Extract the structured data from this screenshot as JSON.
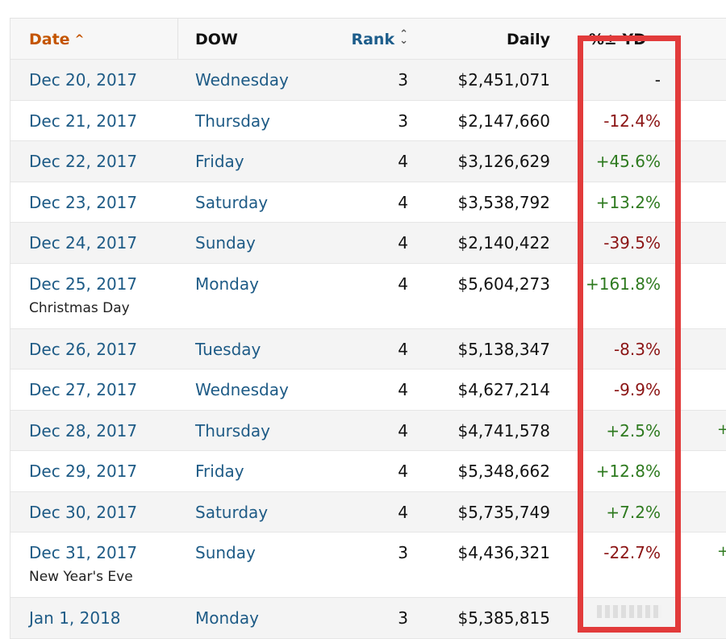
{
  "columns": {
    "date": "Date",
    "dow": "DOW",
    "rank": "Rank",
    "daily": "Daily",
    "pct": "%± YD"
  },
  "rows": [
    {
      "date": "Dec 20, 2017",
      "dow": "Wednesday",
      "rank": "3",
      "daily": "$2,451,071",
      "pct": "-",
      "pct_type": "neutral"
    },
    {
      "date": "Dec 21, 2017",
      "dow": "Thursday",
      "rank": "3",
      "daily": "$2,147,660",
      "pct": "-12.4%",
      "pct_type": "neg"
    },
    {
      "date": "Dec 22, 2017",
      "dow": "Friday",
      "rank": "4",
      "daily": "$3,126,629",
      "pct": "+45.6%",
      "pct_type": "pos"
    },
    {
      "date": "Dec 23, 2017",
      "dow": "Saturday",
      "rank": "4",
      "daily": "$3,538,792",
      "pct": "+13.2%",
      "pct_type": "pos"
    },
    {
      "date": "Dec 24, 2017",
      "dow": "Sunday",
      "rank": "4",
      "daily": "$2,140,422",
      "pct": "-39.5%",
      "pct_type": "neg"
    },
    {
      "date": "Dec 25, 2017",
      "note": "Christmas Day",
      "dow": "Monday",
      "rank": "4",
      "daily": "$5,604,273",
      "pct": "+161.8%",
      "pct_type": "pos"
    },
    {
      "date": "Dec 26, 2017",
      "dow": "Tuesday",
      "rank": "4",
      "daily": "$5,138,347",
      "pct": "-8.3%",
      "pct_type": "neg"
    },
    {
      "date": "Dec 27, 2017",
      "dow": "Wednesday",
      "rank": "4",
      "daily": "$4,627,214",
      "pct": "-9.9%",
      "pct_type": "neg"
    },
    {
      "date": "Dec 28, 2017",
      "dow": "Thursday",
      "rank": "4",
      "daily": "$4,741,578",
      "pct": "+2.5%",
      "pct_type": "pos",
      "extra": "+"
    },
    {
      "date": "Dec 29, 2017",
      "dow": "Friday",
      "rank": "4",
      "daily": "$5,348,662",
      "pct": "+12.8%",
      "pct_type": "pos"
    },
    {
      "date": "Dec 30, 2017",
      "dow": "Saturday",
      "rank": "4",
      "daily": "$5,735,749",
      "pct": "+7.2%",
      "pct_type": "pos"
    },
    {
      "date": "Dec 31, 2017",
      "note": "New Year's Eve",
      "dow": "Sunday",
      "rank": "3",
      "daily": "$4,436,321",
      "pct": "-22.7%",
      "pct_type": "neg",
      "extra": "+"
    },
    {
      "date": "Jan 1, 2018",
      "dow": "Monday",
      "rank": "3",
      "daily": "$5,385,815",
      "pct": "",
      "pct_type": "neutral"
    }
  ],
  "colors": {
    "date_header": "#c45500",
    "link": "#1e5b86",
    "negative": "#8b1414",
    "positive": "#2e7a1f",
    "highlight": "#e23b3b"
  }
}
